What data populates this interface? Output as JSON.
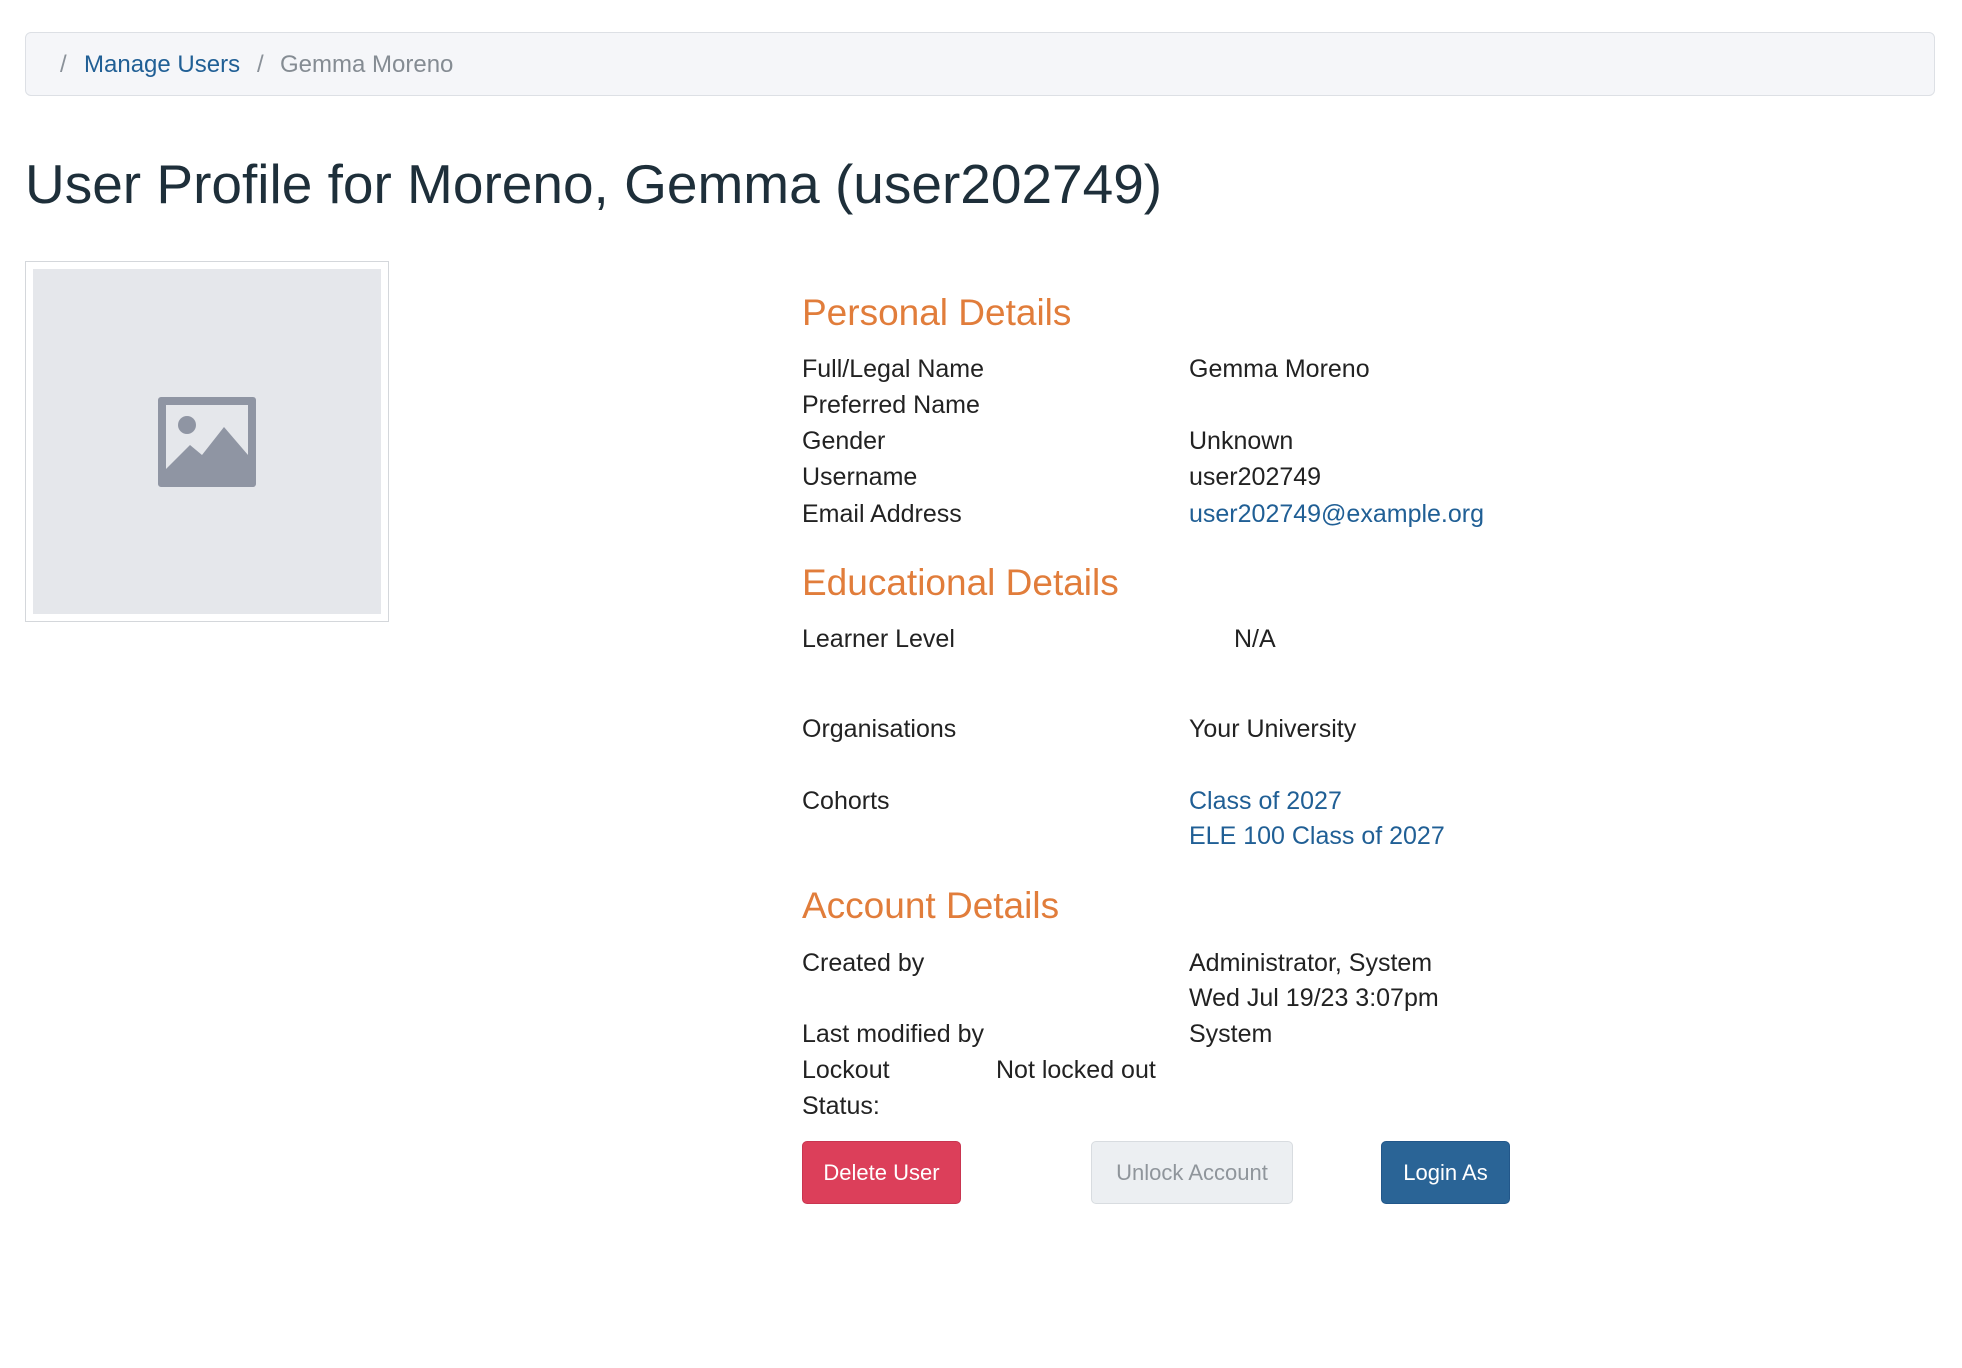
{
  "breadcrumb": {
    "separator": "/",
    "items": [
      {
        "label": "Manage Users"
      },
      {
        "label": "Gemma Moreno"
      }
    ]
  },
  "page_title": "User Profile for Moreno, Gemma (user202749)",
  "avatar": {
    "icon": "image-placeholder-icon"
  },
  "personal": {
    "heading": "Personal Details",
    "full_name_label": "Full/Legal Name",
    "full_name": "Gemma Moreno",
    "preferred_label": "Preferred Name",
    "gender_label": "Gender",
    "gender": "Unknown",
    "username_label": "Username",
    "username": "user202749",
    "email_label": "Email Address",
    "email": "user202749@example.org"
  },
  "educational": {
    "heading": "Educational Details",
    "learner_level_label": "Learner Level",
    "learner_level": "N/A",
    "organisations_label": "Organisations",
    "organisation": "Your University",
    "cohorts_label": "Cohorts",
    "cohorts": [
      "Class of 2027",
      "ELE 100 Class of 2027"
    ]
  },
  "account": {
    "heading": "Account Details",
    "created_by_label": "Created by",
    "created_by": "Administrator, System",
    "created_at": "Wed Jul 19/23 3:07pm",
    "modified_by_label": "Last modified by",
    "modified_by": "System",
    "lockout_label_1": "Lockout",
    "lockout_label_2": "Status:",
    "lockout_status": "Not locked out"
  },
  "actions": {
    "delete": "Delete User",
    "unlock": "Unlock Account",
    "login_as": "Login As"
  },
  "colors": {
    "heading": "#e17d3b",
    "link": "#205f95",
    "danger": "#dc3f5a",
    "primary": "#2a6496"
  }
}
